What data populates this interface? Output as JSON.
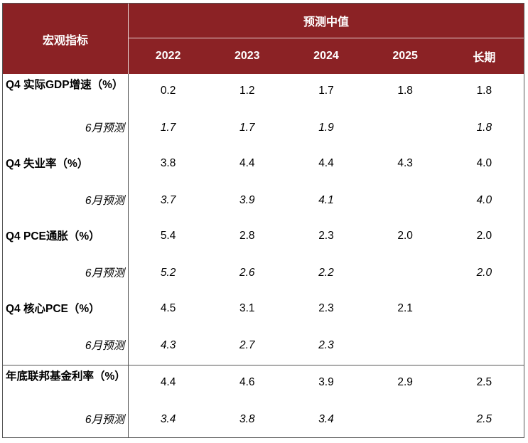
{
  "header": {
    "indicator_label": "宏观指标",
    "group_label": "预测中值",
    "columns": [
      "2022",
      "2023",
      "2024",
      "2025",
      "长期"
    ]
  },
  "rows": [
    {
      "label": "Q4 实际GDP增速（%）",
      "values": [
        "0.2",
        "1.2",
        "1.7",
        "1.8",
        "1.8"
      ],
      "sub_label": "6月预测",
      "sub_values": [
        "1.7",
        "1.7",
        "1.9",
        "",
        "1.8"
      ]
    },
    {
      "label": "Q4 失业率（%）",
      "values": [
        "3.8",
        "4.4",
        "4.4",
        "4.3",
        "4.0"
      ],
      "sub_label": "6月预测",
      "sub_values": [
        "3.7",
        "3.9",
        "4.1",
        "",
        "4.0"
      ]
    },
    {
      "label": "Q4 PCE通胀（%）",
      "values": [
        "5.4",
        "2.8",
        "2.3",
        "2.0",
        "2.0"
      ],
      "sub_label": "6月预测",
      "sub_values": [
        "5.2",
        "2.6",
        "2.2",
        "",
        "2.0"
      ]
    },
    {
      "label": "Q4 核心PCE（%）",
      "values": [
        "4.5",
        "3.1",
        "2.3",
        "2.1",
        ""
      ],
      "sub_label": "6月预测",
      "sub_values": [
        "4.3",
        "2.7",
        "2.3",
        "",
        ""
      ]
    },
    {
      "label": "年底联邦基金利率（%）",
      "values": [
        "4.4",
        "4.6",
        "3.9",
        "2.9",
        "2.5"
      ],
      "sub_label": "6月预测",
      "sub_values": [
        "3.4",
        "3.8",
        "3.4",
        "",
        "2.5"
      ]
    }
  ],
  "colors": {
    "header_bg": "#8b2225",
    "header_text": "#ffffff"
  }
}
